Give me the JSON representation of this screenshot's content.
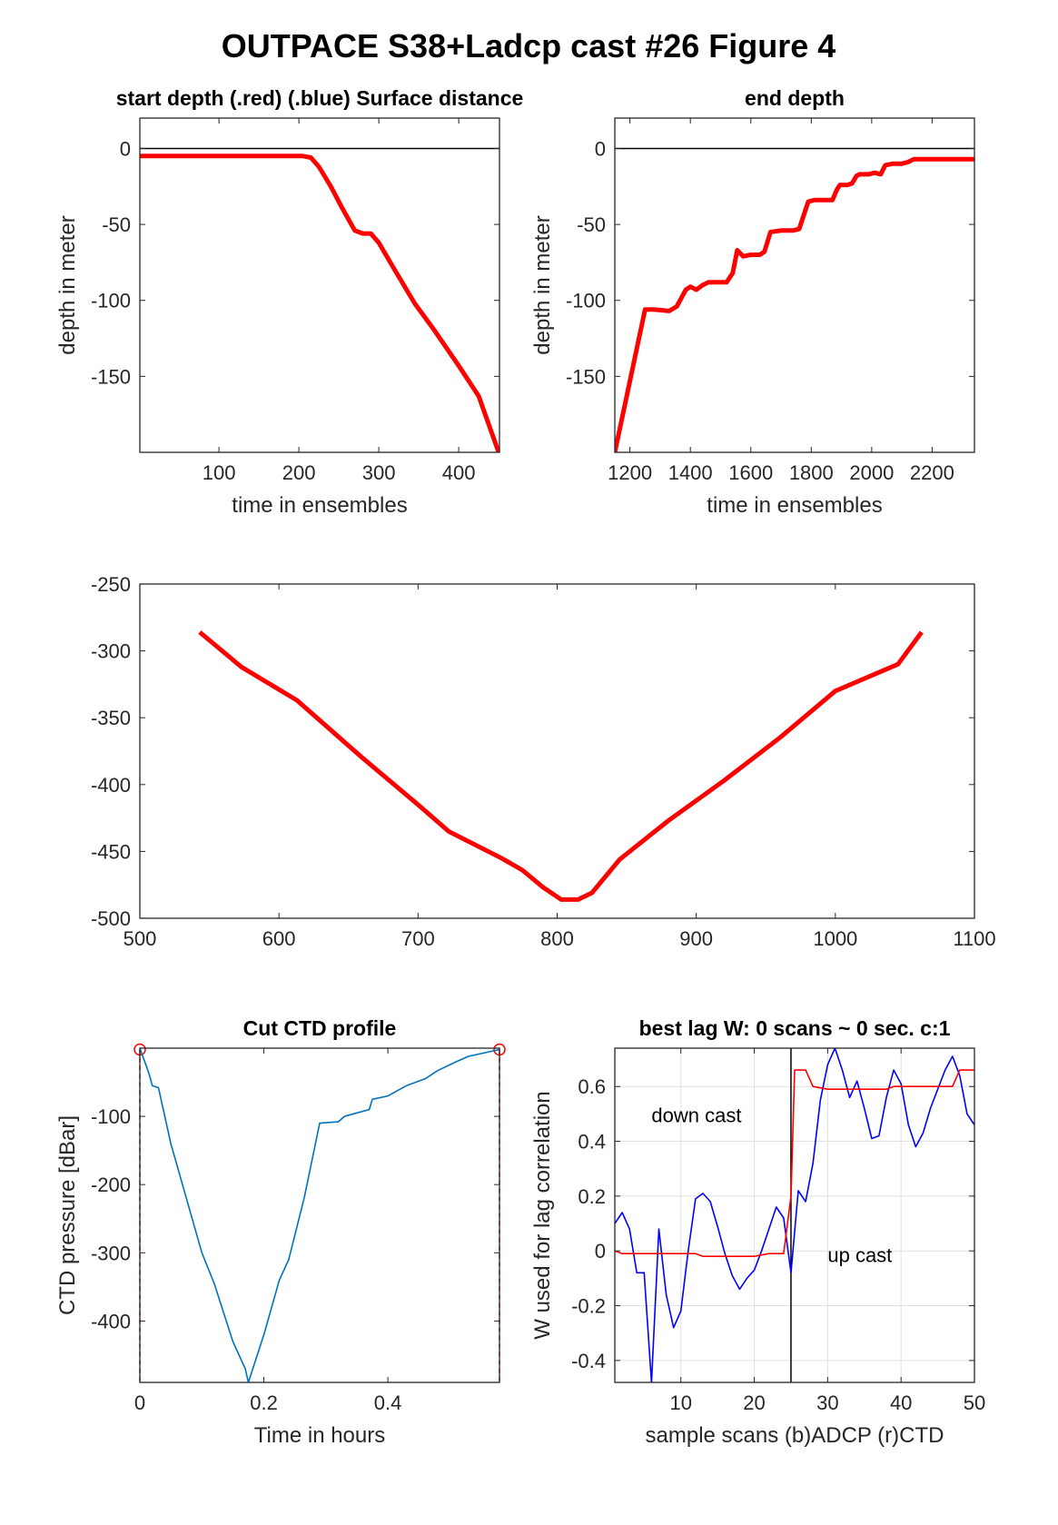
{
  "figure": {
    "title": "OUTPACE S38+Ladcp cast #26   Figure 4"
  },
  "chart_data": [
    {
      "id": "start_depth",
      "type": "line",
      "title": "start depth (.red) (.blue) Surface distance",
      "xlabel": "time in ensembles",
      "ylabel": "depth in meter",
      "xlim": [
        1,
        451
      ],
      "ylim": [
        -200,
        20
      ],
      "xticks": [
        100,
        200,
        300,
        400
      ],
      "yticks": [
        0,
        -50,
        -100,
        -150
      ],
      "grid": false,
      "reference_line": {
        "y": 0,
        "color": "#000000"
      },
      "series": [
        {
          "color": "#ff0000",
          "points": [
            [
              1,
              -5
            ],
            [
              205,
              -5
            ],
            [
              215,
              -6
            ],
            [
              225,
              -12
            ],
            [
              240,
              -25
            ],
            [
              255,
              -40
            ],
            [
              270,
              -54
            ],
            [
              280,
              -56
            ],
            [
              290,
              -56
            ],
            [
              300,
              -62
            ],
            [
              320,
              -80
            ],
            [
              345,
              -102
            ],
            [
              370,
              -120
            ],
            [
              400,
              -143
            ],
            [
              425,
              -163
            ],
            [
              450,
              -200
            ]
          ]
        }
      ]
    },
    {
      "id": "end_depth",
      "type": "line",
      "title": "end depth",
      "xlabel": "time in ensembles",
      "ylabel": "depth in meter",
      "xlim": [
        1150,
        2340
      ],
      "ylim": [
        -200,
        20
      ],
      "xticks": [
        1200,
        1400,
        1600,
        1800,
        2000,
        2200
      ],
      "yticks": [
        0,
        -50,
        -100,
        -150
      ],
      "grid": false,
      "reference_line": {
        "y": 0,
        "color": "#000000"
      },
      "series": [
        {
          "color": "#ff0000",
          "points": [
            [
              1150,
              -200
            ],
            [
              1250,
              -106
            ],
            [
              1280,
              -106
            ],
            [
              1330,
              -107
            ],
            [
              1355,
              -104
            ],
            [
              1385,
              -93
            ],
            [
              1400,
              -91
            ],
            [
              1420,
              -93
            ],
            [
              1440,
              -90
            ],
            [
              1460,
              -88
            ],
            [
              1500,
              -88
            ],
            [
              1520,
              -88
            ],
            [
              1540,
              -82
            ],
            [
              1555,
              -67
            ],
            [
              1575,
              -71
            ],
            [
              1600,
              -70
            ],
            [
              1630,
              -70
            ],
            [
              1645,
              -68
            ],
            [
              1665,
              -55
            ],
            [
              1700,
              -54
            ],
            [
              1740,
              -54
            ],
            [
              1760,
              -53
            ],
            [
              1775,
              -44
            ],
            [
              1790,
              -35
            ],
            [
              1810,
              -34
            ],
            [
              1850,
              -34
            ],
            [
              1870,
              -34
            ],
            [
              1885,
              -27
            ],
            [
              1895,
              -24
            ],
            [
              1920,
              -24
            ],
            [
              1935,
              -23
            ],
            [
              1950,
              -18
            ],
            [
              1960,
              -17
            ],
            [
              1990,
              -17
            ],
            [
              2010,
              -16
            ],
            [
              2030,
              -17
            ],
            [
              2045,
              -11
            ],
            [
              2070,
              -10
            ],
            [
              2100,
              -10
            ],
            [
              2120,
              -9
            ],
            [
              2140,
              -7
            ],
            [
              2180,
              -7
            ],
            [
              2200,
              -7
            ],
            [
              2220,
              -7
            ],
            [
              2260,
              -7
            ],
            [
              2290,
              -7
            ],
            [
              2340,
              -7
            ]
          ]
        }
      ]
    },
    {
      "id": "middle_profile",
      "type": "line",
      "title": "",
      "xlabel": "",
      "ylabel": "",
      "xlim": [
        500,
        1100
      ],
      "ylim": [
        -500,
        -250
      ],
      "xticks": [
        500,
        600,
        700,
        800,
        900,
        1000,
        1100
      ],
      "yticks": [
        -250,
        -300,
        -350,
        -400,
        -450,
        -500
      ],
      "grid": false,
      "series": [
        {
          "color": "#ff0000",
          "points": [
            [
              543,
              -286
            ],
            [
              573,
              -312
            ],
            [
              613,
              -337
            ],
            [
              660,
              -380
            ],
            [
              700,
              -415
            ],
            [
              722,
              -435
            ],
            [
              760,
              -455
            ],
            [
              775,
              -464
            ],
            [
              790,
              -477
            ],
            [
              803,
              -486
            ],
            [
              815,
              -486
            ],
            [
              825,
              -481
            ],
            [
              845,
              -456
            ],
            [
              880,
              -427
            ],
            [
              920,
              -397
            ],
            [
              960,
              -365
            ],
            [
              1000,
              -330
            ],
            [
              1045,
              -310
            ],
            [
              1062,
              -286
            ]
          ]
        }
      ]
    },
    {
      "id": "cut_ctd_profile",
      "type": "line",
      "title": "Cut CTD profile",
      "xlabel": "Time in hours",
      "ylabel": "CTD pressure [dBar]",
      "xlim": [
        0,
        0.58
      ],
      "ylim": [
        -490,
        0
      ],
      "xticks": [
        0,
        0.2,
        0.4
      ],
      "yticks": [
        -100,
        -200,
        -300,
        -400
      ],
      "grid": false,
      "series": [
        {
          "color": "#0072bd",
          "points": [
            [
              0,
              0
            ],
            [
              0.01,
              -25
            ],
            [
              0.015,
              -38
            ],
            [
              0.02,
              -55
            ],
            [
              0.03,
              -58
            ],
            [
              0.05,
              -140
            ],
            [
              0.075,
              -220
            ],
            [
              0.1,
              -300
            ],
            [
              0.12,
              -345
            ],
            [
              0.15,
              -430
            ],
            [
              0.17,
              -470
            ],
            [
              0.175,
              -490
            ],
            [
              0.2,
              -420
            ],
            [
              0.225,
              -340
            ],
            [
              0.24,
              -310
            ],
            [
              0.265,
              -220
            ],
            [
              0.29,
              -110
            ],
            [
              0.32,
              -108
            ],
            [
              0.33,
              -100
            ],
            [
              0.35,
              -95
            ],
            [
              0.37,
              -90
            ],
            [
              0.375,
              -75
            ],
            [
              0.4,
              -70
            ],
            [
              0.41,
              -65
            ],
            [
              0.43,
              -55
            ],
            [
              0.46,
              -45
            ],
            [
              0.48,
              -33
            ],
            [
              0.51,
              -20
            ],
            [
              0.53,
              -12
            ],
            [
              0.55,
              -8
            ],
            [
              0.58,
              -2
            ]
          ]
        }
      ],
      "endpoints": {
        "color": "#ff0000",
        "points": [
          [
            0,
            -2
          ],
          [
            0.58,
            -2
          ]
        ]
      }
    },
    {
      "id": "best_lag",
      "type": "line",
      "title": "best lag W: 0 scans ~ 0 sec.  c:1",
      "xlabel": "sample scans (b)ADCP (r)CTD",
      "ylabel": "W used for lag correlation",
      "xlim": [
        1,
        50
      ],
      "ylim": [
        -0.48,
        0.74
      ],
      "xticks": [
        10,
        20,
        30,
        40,
        50
      ],
      "yticks": [
        0.6,
        0.4,
        0.2,
        0,
        -0.2,
        -0.4
      ],
      "grid": true,
      "vertical_line": {
        "x": 25,
        "color": "#000000"
      },
      "annotations": [
        {
          "text": "down cast",
          "x": 6,
          "y": 0.47
        },
        {
          "text": "up cast",
          "x": 30,
          "y": -0.04
        }
      ],
      "series": [
        {
          "name": "(b)ADCP",
          "color": "#0000ff",
          "points": [
            [
              1,
              0.1
            ],
            [
              2,
              0.14
            ],
            [
              3,
              0.08
            ],
            [
              4,
              -0.08
            ],
            [
              5,
              -0.08
            ],
            [
              6,
              -0.48
            ],
            [
              7,
              0.08
            ],
            [
              8,
              -0.16
            ],
            [
              9,
              -0.28
            ],
            [
              10,
              -0.22
            ],
            [
              11,
              0.0
            ],
            [
              12,
              0.19
            ],
            [
              13,
              0.21
            ],
            [
              14,
              0.18
            ],
            [
              15,
              0.09
            ],
            [
              16,
              -0.01
            ],
            [
              17,
              -0.09
            ],
            [
              18,
              -0.14
            ],
            [
              19,
              -0.1
            ],
            [
              20,
              -0.07
            ],
            [
              21,
              0.0
            ],
            [
              22,
              0.08
            ],
            [
              23,
              0.16
            ],
            [
              24,
              0.12
            ],
            [
              25,
              -0.08
            ],
            [
              26,
              0.22
            ],
            [
              27,
              0.18
            ],
            [
              28,
              0.32
            ],
            [
              29,
              0.55
            ],
            [
              30,
              0.68
            ],
            [
              31,
              0.74
            ],
            [
              32,
              0.66
            ],
            [
              33,
              0.56
            ],
            [
              34,
              0.62
            ],
            [
              35,
              0.52
            ],
            [
              36,
              0.41
            ],
            [
              37,
              0.42
            ],
            [
              38,
              0.56
            ],
            [
              39,
              0.66
            ],
            [
              40,
              0.61
            ],
            [
              41,
              0.46
            ],
            [
              42,
              0.38
            ],
            [
              43,
              0.43
            ],
            [
              44,
              0.52
            ],
            [
              45,
              0.59
            ],
            [
              46,
              0.66
            ],
            [
              47,
              0.71
            ],
            [
              48,
              0.64
            ],
            [
              49,
              0.5
            ],
            [
              50,
              0.46
            ]
          ]
        },
        {
          "name": "(r)CTD",
          "color": "#ff0000",
          "points": [
            [
              1,
              0.0
            ],
            [
              2,
              -0.01
            ],
            [
              5,
              -0.01
            ],
            [
              10,
              -0.01
            ],
            [
              12,
              -0.01
            ],
            [
              13,
              -0.02
            ],
            [
              15,
              -0.02
            ],
            [
              20,
              -0.02
            ],
            [
              22,
              -0.01
            ],
            [
              24,
              -0.01
            ],
            [
              25,
              0.2
            ],
            [
              25.5,
              0.66
            ],
            [
              27,
              0.66
            ],
            [
              28,
              0.6
            ],
            [
              30,
              0.59
            ],
            [
              35,
              0.59
            ],
            [
              38,
              0.59
            ],
            [
              39,
              0.6
            ],
            [
              45,
              0.6
            ],
            [
              47,
              0.6
            ],
            [
              48,
              0.66
            ],
            [
              50,
              0.66
            ]
          ]
        }
      ]
    }
  ]
}
